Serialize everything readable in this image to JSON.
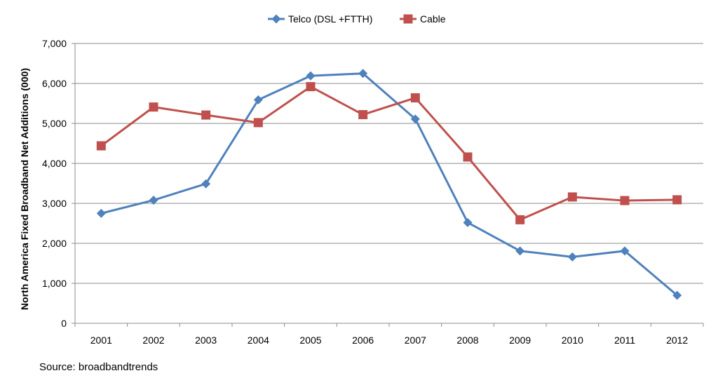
{
  "chart_data": {
    "type": "line",
    "title": "",
    "xlabel": "",
    "ylabel": "North America Fixed Broadband Net Additions (000)",
    "ylim": [
      0,
      7000
    ],
    "yticks": [
      "0",
      "1,000",
      "2,000",
      "3,000",
      "4,000",
      "5,000",
      "6,000",
      "7,000"
    ],
    "ytick_values": [
      0,
      1000,
      2000,
      3000,
      4000,
      5000,
      6000,
      7000
    ],
    "categories": [
      "2001",
      "2002",
      "2003",
      "2004",
      "2005",
      "2006",
      "2007",
      "2008",
      "2009",
      "2010",
      "2011",
      "2012"
    ],
    "grid": true,
    "legend_position": "top-center",
    "series": [
      {
        "name": "Telco (DSL +FTTH)",
        "color": "#4f81bd",
        "marker": "diamond",
        "values": [
          2750,
          3080,
          3490,
          5590,
          6190,
          6250,
          5110,
          2520,
          1810,
          1660,
          1810,
          700
        ]
      },
      {
        "name": "Cable",
        "color": "#c0504d",
        "marker": "square",
        "values": [
          4440,
          5410,
          5210,
          5020,
          5920,
          5220,
          5640,
          4160,
          2590,
          3160,
          3070,
          3090
        ]
      }
    ]
  },
  "source_text": "Source: broadbandtrends"
}
